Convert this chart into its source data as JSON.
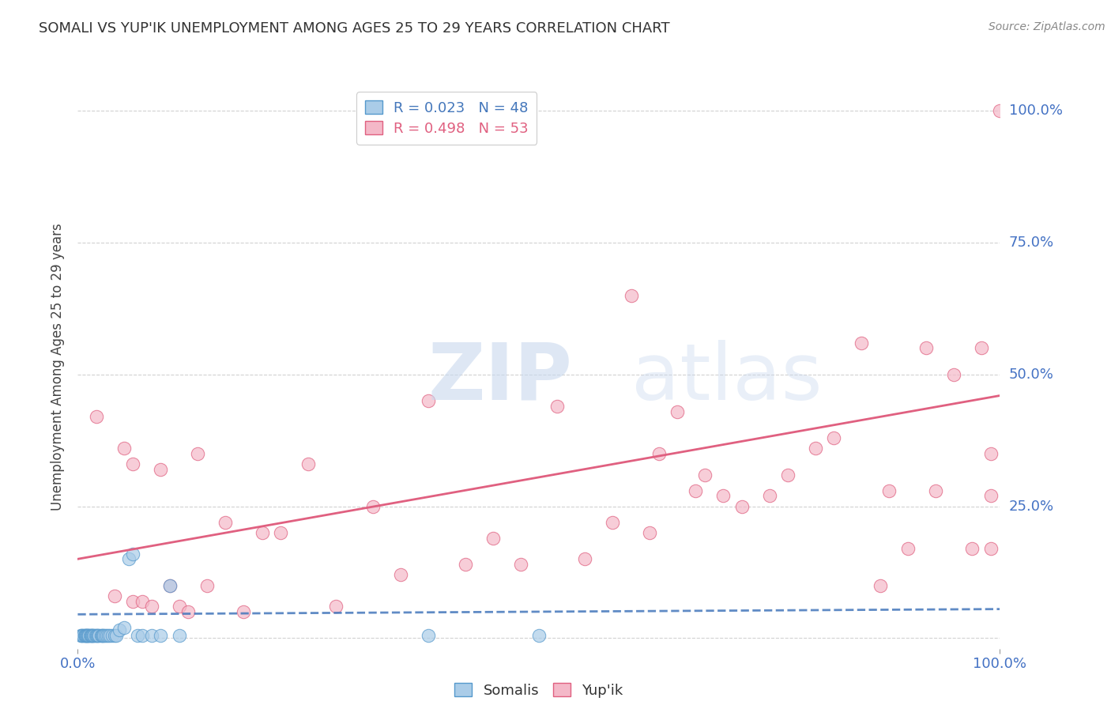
{
  "title": "SOMALI VS YUP'IK UNEMPLOYMENT AMONG AGES 25 TO 29 YEARS CORRELATION CHART",
  "source": "Source: ZipAtlas.com",
  "ylabel": "Unemployment Among Ages 25 to 29 years",
  "xlim": [
    0,
    1.0
  ],
  "ylim": [
    -0.02,
    1.05
  ],
  "ytick_positions": [
    0.0,
    0.25,
    0.5,
    0.75,
    1.0
  ],
  "ytick_labels": [
    "",
    "25.0%",
    "50.0%",
    "75.0%",
    "100.0%"
  ],
  "xtick_positions": [
    0.0,
    1.0
  ],
  "xtick_labels": [
    "0.0%",
    "100.0%"
  ],
  "grid_color": "#cccccc",
  "background_color": "#ffffff",
  "legend1_label": "Somalis",
  "legend2_label": "Yup'ik",
  "somali_R": "R = 0.023",
  "somali_N": "N = 48",
  "yupik_R": "R = 0.498",
  "yupik_N": "N = 53",
  "somali_color": "#aacce8",
  "yupik_color": "#f4b8c8",
  "somali_edge_color": "#5599cc",
  "yupik_edge_color": "#e06080",
  "somali_line_color": "#4477bb",
  "yupik_line_color": "#e06080",
  "tick_color": "#4472c4",
  "label_color": "#4472c4",
  "somali_scatter_x": [
    0.003,
    0.004,
    0.005,
    0.006,
    0.007,
    0.008,
    0.008,
    0.009,
    0.01,
    0.01,
    0.011,
    0.012,
    0.012,
    0.013,
    0.014,
    0.015,
    0.015,
    0.016,
    0.017,
    0.018,
    0.019,
    0.02,
    0.021,
    0.022,
    0.023,
    0.025,
    0.026,
    0.027,
    0.028,
    0.03,
    0.031,
    0.033,
    0.035,
    0.037,
    0.04,
    0.042,
    0.045,
    0.05,
    0.055,
    0.06,
    0.065,
    0.07,
    0.08,
    0.09,
    0.1,
    0.11,
    0.38,
    0.5
  ],
  "somali_scatter_y": [
    0.005,
    0.005,
    0.005,
    0.005,
    0.005,
    0.005,
    0.005,
    0.005,
    0.005,
    0.005,
    0.005,
    0.005,
    0.005,
    0.005,
    0.005,
    0.005,
    0.005,
    0.005,
    0.005,
    0.005,
    0.005,
    0.005,
    0.005,
    0.005,
    0.005,
    0.005,
    0.005,
    0.005,
    0.005,
    0.005,
    0.005,
    0.005,
    0.005,
    0.005,
    0.005,
    0.005,
    0.015,
    0.02,
    0.15,
    0.16,
    0.005,
    0.005,
    0.005,
    0.005,
    0.1,
    0.005,
    0.005,
    0.005
  ],
  "yupik_scatter_x": [
    0.02,
    0.04,
    0.05,
    0.06,
    0.06,
    0.07,
    0.08,
    0.09,
    0.1,
    0.11,
    0.12,
    0.13,
    0.14,
    0.16,
    0.18,
    0.2,
    0.22,
    0.25,
    0.28,
    0.32,
    0.35,
    0.38,
    0.42,
    0.45,
    0.48,
    0.52,
    0.55,
    0.58,
    0.6,
    0.62,
    0.63,
    0.65,
    0.67,
    0.68,
    0.7,
    0.72,
    0.75,
    0.77,
    0.8,
    0.82,
    0.85,
    0.87,
    0.88,
    0.9,
    0.92,
    0.93,
    0.95,
    0.97,
    0.98,
    0.99,
    0.99,
    0.99,
    1.0
  ],
  "yupik_scatter_y": [
    0.42,
    0.08,
    0.36,
    0.07,
    0.33,
    0.07,
    0.06,
    0.32,
    0.1,
    0.06,
    0.05,
    0.35,
    0.1,
    0.22,
    0.05,
    0.2,
    0.2,
    0.33,
    0.06,
    0.25,
    0.12,
    0.45,
    0.14,
    0.19,
    0.14,
    0.44,
    0.15,
    0.22,
    0.65,
    0.2,
    0.35,
    0.43,
    0.28,
    0.31,
    0.27,
    0.25,
    0.27,
    0.31,
    0.36,
    0.38,
    0.56,
    0.1,
    0.28,
    0.17,
    0.55,
    0.28,
    0.5,
    0.17,
    0.55,
    0.17,
    0.27,
    0.35,
    1.0
  ],
  "somali_trendline_x": [
    0.0,
    1.0
  ],
  "somali_trendline_y": [
    0.045,
    0.055
  ],
  "yupik_trendline_x": [
    0.0,
    1.0
  ],
  "yupik_trendline_y": [
    0.15,
    0.46
  ]
}
